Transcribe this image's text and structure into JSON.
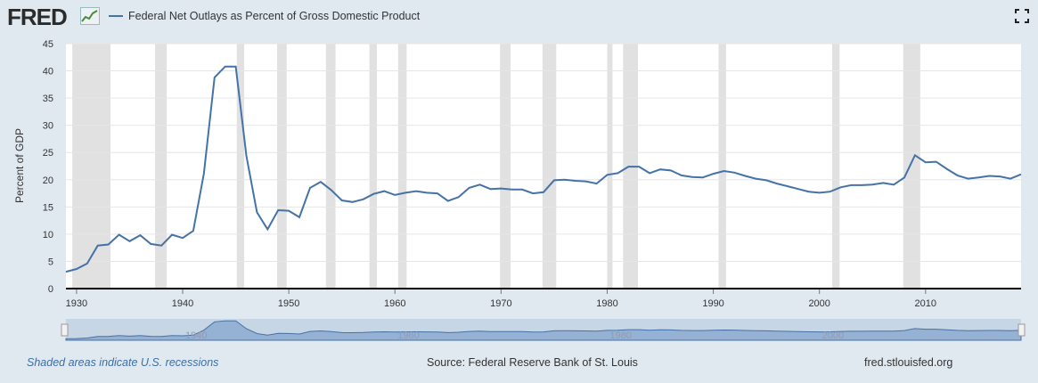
{
  "header": {
    "logo_text": "FRED",
    "legend_label": "Federal Net Outlays as Percent of Gross Domestic Product"
  },
  "footer": {
    "recession_note": "Shaded areas indicate U.S. recessions",
    "source": "Source: Federal Reserve Bank of St. Louis",
    "site": "fred.stlouisfed.org"
  },
  "colors": {
    "line": "#4572a7",
    "recession": "#e1e1e1",
    "background": "#e1e9f0",
    "plot": "#ffffff"
  },
  "icons": {
    "logo_graph": "line-chart-icon",
    "fullscreen": "fullscreen-icon"
  },
  "chart_data": {
    "type": "line",
    "ylabel": "Percent of GDP",
    "ylim": [
      0,
      45
    ],
    "yticks": [
      0,
      5,
      10,
      15,
      20,
      25,
      30,
      35,
      40,
      45
    ],
    "xlim": [
      1929,
      2019
    ],
    "xticks": [
      1930,
      1940,
      1950,
      1960,
      1970,
      1980,
      1990,
      2000,
      2010
    ],
    "grid": true,
    "legend_position": "top-left",
    "navigator_labels": [
      "1940",
      "1960",
      "1980",
      "2000"
    ],
    "recessions": [
      [
        1929.6,
        1933.2
      ],
      [
        1937.4,
        1938.5
      ],
      [
        1945.1,
        1945.8
      ],
      [
        1948.9,
        1949.8
      ],
      [
        1953.5,
        1954.4
      ],
      [
        1957.6,
        1958.3
      ],
      [
        1960.3,
        1961.1
      ],
      [
        1969.9,
        1970.9
      ],
      [
        1973.9,
        1975.2
      ],
      [
        1980.0,
        1980.5
      ],
      [
        1981.5,
        1982.9
      ],
      [
        1990.5,
        1991.2
      ],
      [
        2001.2,
        2001.9
      ],
      [
        2007.9,
        2009.5
      ]
    ],
    "series": [
      {
        "name": "Federal Net Outlays as Percent of Gross Domestic Product",
        "x": [
          1929,
          1930,
          1931,
          1932,
          1933,
          1934,
          1935,
          1936,
          1937,
          1938,
          1939,
          1940,
          1941,
          1942,
          1943,
          1944,
          1945,
          1946,
          1947,
          1948,
          1949,
          1950,
          1951,
          1952,
          1953,
          1954,
          1955,
          1956,
          1957,
          1958,
          1959,
          1960,
          1961,
          1962,
          1963,
          1964,
          1965,
          1966,
          1967,
          1968,
          1969,
          1970,
          1971,
          1972,
          1973,
          1974,
          1975,
          1976,
          1977,
          1978,
          1979,
          1980,
          1981,
          1982,
          1983,
          1984,
          1985,
          1986,
          1987,
          1988,
          1989,
          1990,
          1991,
          1992,
          1993,
          1994,
          1995,
          1996,
          1997,
          1998,
          1999,
          2000,
          2001,
          2002,
          2003,
          2004,
          2005,
          2006,
          2007,
          2008,
          2009,
          2010,
          2011,
          2012,
          2013,
          2014,
          2015,
          2016,
          2017,
          2018,
          2019
        ],
        "values": [
          3.1,
          3.6,
          4.6,
          7.9,
          8.1,
          9.9,
          8.7,
          9.8,
          8.2,
          7.9,
          9.9,
          9.3,
          10.6,
          21.1,
          38.8,
          40.8,
          40.8,
          24.4,
          14.0,
          10.9,
          14.4,
          14.3,
          13.1,
          18.5,
          19.6,
          18.1,
          16.2,
          15.9,
          16.4,
          17.4,
          17.9,
          17.2,
          17.6,
          17.9,
          17.6,
          17.5,
          16.1,
          16.8,
          18.5,
          19.1,
          18.3,
          18.4,
          18.2,
          18.2,
          17.5,
          17.7,
          19.9,
          20.0,
          19.8,
          19.7,
          19.3,
          20.9,
          21.2,
          22.4,
          22.4,
          21.2,
          21.9,
          21.7,
          20.8,
          20.5,
          20.4,
          21.1,
          21.6,
          21.3,
          20.7,
          20.2,
          19.9,
          19.3,
          18.8,
          18.3,
          17.8,
          17.6,
          17.8,
          18.6,
          19.0,
          19.0,
          19.1,
          19.4,
          19.1,
          20.4,
          24.5,
          23.2,
          23.3,
          22.0,
          20.8,
          20.2,
          20.4,
          20.7,
          20.6,
          20.2,
          21.0
        ]
      }
    ]
  }
}
